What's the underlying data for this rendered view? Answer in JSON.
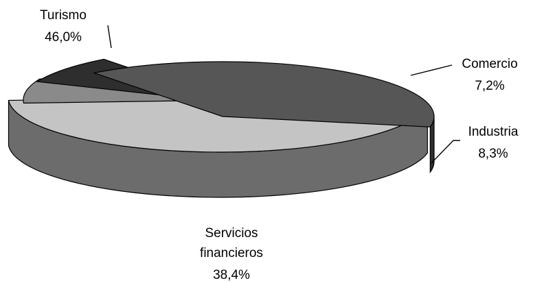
{
  "chart_data": {
    "type": "pie",
    "style": "3d-exploded",
    "legend": "none",
    "slices": [
      {
        "name": "Turismo",
        "value": 46.0,
        "label": "46,0%",
        "color": "#c4c4c4"
      },
      {
        "name": "Comercio",
        "value": 7.2,
        "label": "7,2%",
        "color": "#8a8a8a"
      },
      {
        "name": "Industria",
        "value": 8.3,
        "label": "8,3%",
        "color": "#2e2e2e"
      },
      {
        "name": "Servicios financieros",
        "value": 38.4,
        "label": "38,4%",
        "color": "#565656"
      }
    ]
  }
}
